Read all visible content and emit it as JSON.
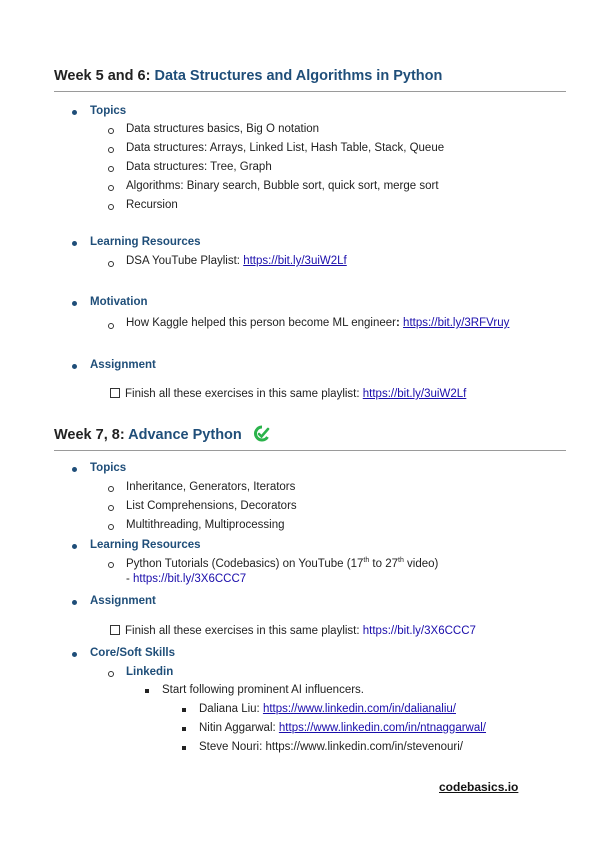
{
  "section1": {
    "title_prefix": "Week 5 and 6: ",
    "title_accent": "Data Structures and Algorithms in Python",
    "topics_label": "Topics",
    "topics": [
      "Data structures basics, Big O notation",
      "Data structures: Arrays, Linked List, Hash Table, Stack, Queue",
      "Data structures: Tree, Graph",
      "Algorithms: Binary search, Bubble sort, quick sort, merge sort",
      "Recursion"
    ],
    "resources_label": "Learning Resources",
    "resource_text": "DSA YouTube Playlist: ",
    "resource_link": "https://bit.ly/3uiW2Lf",
    "motivation_label": "Motivation",
    "motivation_text": "How Kaggle helped this person become ML engineer",
    "motivation_colon": ":",
    "motivation_link": "https://bit.ly/3RFVruy",
    "assignment_label": "Assignment",
    "assignment_text": "Finish all these exercises in this same playlist: ",
    "assignment_link": "https://bit.ly/3uiW2Lf"
  },
  "section2": {
    "title_prefix": "Week 7, 8: ",
    "title_accent": "Advance Python",
    "topics_label": "Topics",
    "topics": [
      "Inheritance, Generators, Iterators",
      "List Comprehensions, Decorators",
      "Multithreading, Multiprocessing"
    ],
    "resources_label": "Learning Resources",
    "resource_text_a": "Python Tutorials (Codebasics) on YouTube (17",
    "resource_sup_a": "th",
    "resource_text_b": " to 27",
    "resource_sup_b": "th",
    "resource_text_c": " video)",
    "resource_dash": "- ",
    "resource_link": "https://bit.ly/3X6CCC7",
    "assignment_label": "Assignment",
    "assignment_text": "Finish all these exercises in this same playlist: ",
    "assignment_link": "https://bit.ly/3X6CCC7",
    "soft_label": "Core/Soft Skills",
    "linkedin_label": "Linkedin",
    "linkedin_intro": "Start following prominent AI influencers.",
    "influencers": [
      {
        "name": "Daliana Liu: ",
        "link": "https://www.linkedin.com/in/dalianaliu/"
      },
      {
        "name": "Nitin Aggarwal: ",
        "link": "https://www.linkedin.com/in/ntnaggarwal/"
      },
      {
        "name": "Steve Nouri: ",
        "link": "https://www.linkedin.com/in/stevenouri/"
      }
    ]
  },
  "footer": {
    "brand": "codebasics.io"
  },
  "colors": {
    "accent": "#1f4e79",
    "link": "#1a0dab",
    "logo": "#2bb34b"
  }
}
